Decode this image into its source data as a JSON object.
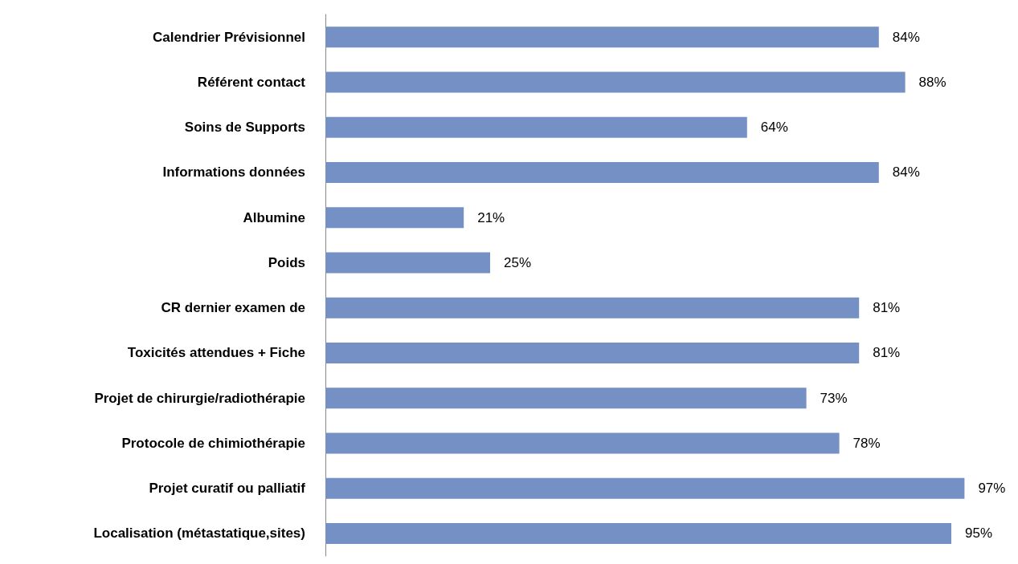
{
  "chart_data": {
    "type": "bar",
    "orientation": "horizontal",
    "categories": [
      "Calendrier Prévisionnel",
      "Référent contact",
      "Soins de Supports",
      "Informations données",
      "Albumine",
      "Poids",
      "CR dernier examen de",
      "Toxicités attendues + Fiche",
      "Projet de chirurgie/radiothérapie",
      "Protocole de chimiothérapie",
      "Projet curatif ou palliatif",
      "Localisation (métastatique,sites)"
    ],
    "values": [
      84,
      88,
      64,
      84,
      21,
      25,
      81,
      81,
      73,
      78,
      97,
      95
    ],
    "value_labels": [
      "84%",
      "88%",
      "64%",
      "84%",
      "21%",
      "25%",
      "81%",
      "81%",
      "73%",
      "78%",
      "97%",
      "95%"
    ],
    "color": "#7590c5"
  }
}
